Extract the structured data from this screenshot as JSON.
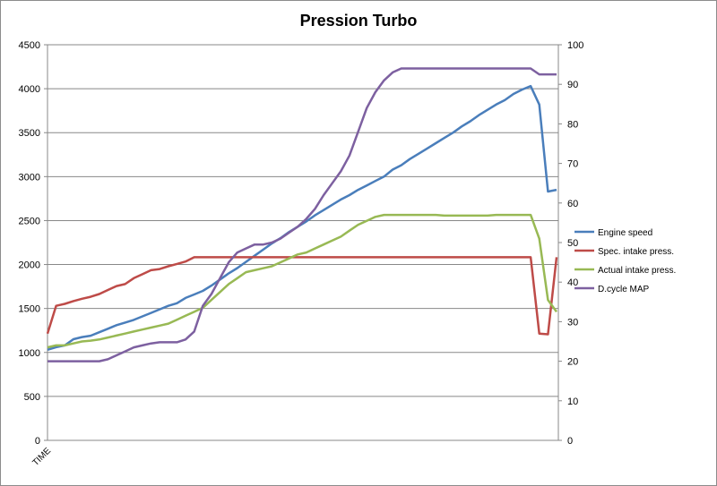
{
  "chart_data": {
    "type": "line",
    "title": "Pression Turbo",
    "x_tick_label": "TIME",
    "y_left": {
      "min": 0,
      "max": 4500,
      "step": 500
    },
    "y_right": {
      "min": 0,
      "max": 100,
      "step": 10
    },
    "grid": "horizontal",
    "legend_position": "right",
    "series": [
      {
        "name": "Engine speed",
        "axis": "left",
        "color": "#4a7ebb",
        "values": [
          1030,
          1060,
          1080,
          1150,
          1175,
          1190,
          1230,
          1270,
          1310,
          1340,
          1370,
          1410,
          1450,
          1490,
          1530,
          1560,
          1620,
          1660,
          1700,
          1760,
          1830,
          1900,
          1960,
          2030,
          2100,
          2170,
          2240,
          2300,
          2370,
          2430,
          2490,
          2560,
          2620,
          2680,
          2740,
          2790,
          2850,
          2900,
          2950,
          3000,
          3080,
          3130,
          3200,
          3260,
          3320,
          3380,
          3440,
          3500,
          3570,
          3630,
          3700,
          3760,
          3820,
          3870,
          3940,
          3990,
          4030,
          3820,
          2830,
          2850
        ]
      },
      {
        "name": "Spec. intake press.",
        "axis": "right",
        "color": "#be4b48",
        "values": [
          27,
          34,
          34.5,
          35.2,
          35.8,
          36.3,
          37,
          38,
          39,
          39.5,
          41,
          42,
          43,
          43.3,
          44,
          44.6,
          45.2,
          46.3,
          46.3,
          46.3,
          46.3,
          46.3,
          46.3,
          46.3,
          46.3,
          46.3,
          46.3,
          46.3,
          46.3,
          46.3,
          46.3,
          46.3,
          46.3,
          46.3,
          46.3,
          46.3,
          46.3,
          46.3,
          46.3,
          46.3,
          46.3,
          46.3,
          46.3,
          46.3,
          46.3,
          46.3,
          46.3,
          46.3,
          46.3,
          46.3,
          46.3,
          46.3,
          46.3,
          46.3,
          46.3,
          46.3,
          46.3,
          27,
          26.8,
          46.3
        ]
      },
      {
        "name": "Actual intake press.",
        "axis": "right",
        "color": "#98b954",
        "values": [
          23.5,
          24,
          24,
          24.5,
          25,
          25.2,
          25.5,
          26,
          26.5,
          27,
          27.5,
          28,
          28.5,
          29,
          29.5,
          30.5,
          31.5,
          32.5,
          33.5,
          35.5,
          37.5,
          39.5,
          41,
          42.5,
          43,
          43.5,
          44,
          45,
          46,
          47,
          47.5,
          48.5,
          49.5,
          50.5,
          51.5,
          53,
          54.5,
          55.5,
          56.5,
          57,
          57,
          57,
          57,
          57,
          57,
          57,
          56.8,
          56.8,
          56.8,
          56.8,
          56.8,
          56.8,
          57,
          57,
          57,
          57,
          57,
          51,
          35.5,
          32.5
        ]
      },
      {
        "name": "D.cycle MAP",
        "axis": "right",
        "color": "#7d60a0",
        "values": [
          20,
          20,
          20,
          20,
          20,
          20,
          20,
          20.5,
          21.5,
          22.5,
          23.5,
          24,
          24.5,
          24.8,
          24.8,
          24.8,
          25.5,
          27.5,
          34,
          37,
          41,
          45,
          47.5,
          48.5,
          49.5,
          49.5,
          50,
          51,
          52.5,
          54,
          56,
          58.5,
          62,
          65,
          68,
          72,
          78,
          84,
          88,
          91,
          93,
          94,
          94,
          94,
          94,
          94,
          94,
          94,
          94,
          94,
          94,
          94,
          94,
          94,
          94,
          94,
          94,
          92.5,
          92.5,
          92.5
        ]
      }
    ]
  }
}
